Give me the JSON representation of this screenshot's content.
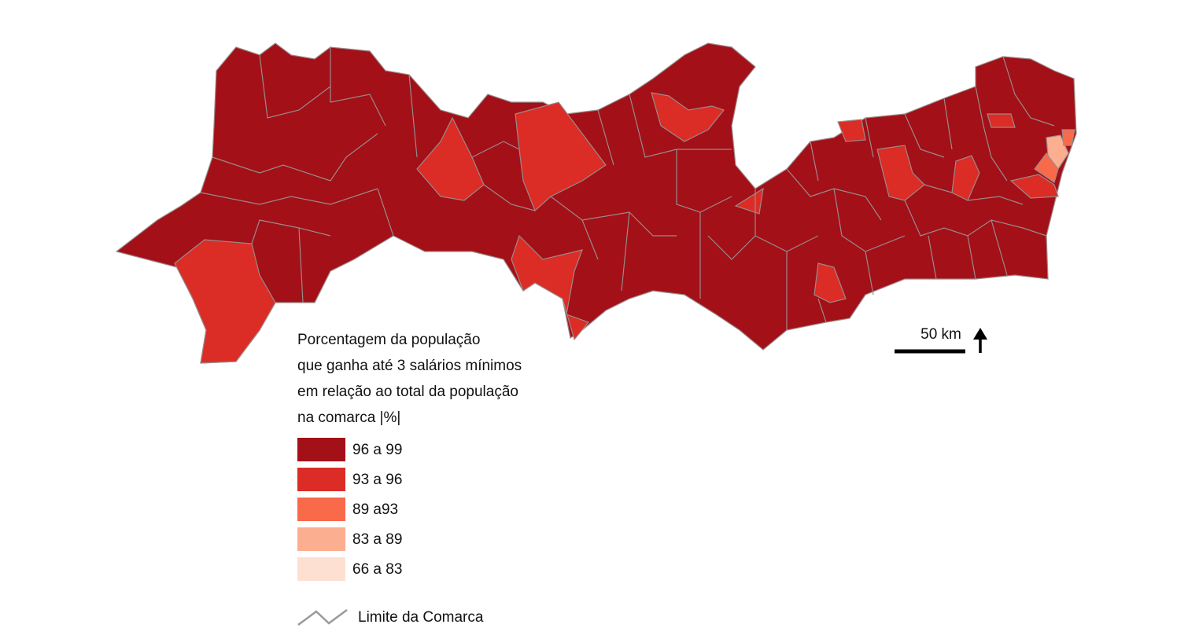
{
  "legend": {
    "title_lines": [
      "Porcentagem da população",
      "que ganha até 3 salários mínimos",
      "em relação ao total da população",
      "na comarca |%|"
    ],
    "items": [
      {
        "label": "96 a 99",
        "color": "#a31018"
      },
      {
        "label": "93 a 96",
        "color": "#db2c26"
      },
      {
        "label": "89 a93",
        "color": "#f96a4b"
      },
      {
        "label": "83 a 89",
        "color": "#fcae91"
      },
      {
        "label": "66 a 83",
        "color": "#fee0d2"
      }
    ],
    "boundary_label": "Limite da Comarca"
  },
  "scale_label": "50 km"
}
